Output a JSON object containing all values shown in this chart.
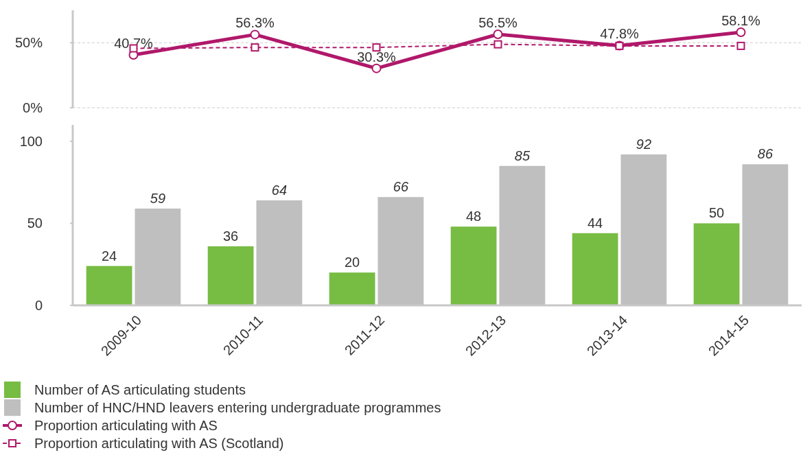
{
  "chart_data": [
    {
      "type": "line",
      "categories": [
        "2009-10",
        "2010-11",
        "2011-12",
        "2012-13",
        "2013-14",
        "2014-15"
      ],
      "ylim": [
        0,
        75
      ],
      "yticks": [
        {
          "value": 0,
          "label": "0%"
        },
        {
          "value": 50,
          "label": "50%"
        }
      ],
      "grid": "y",
      "tick_labels": "y",
      "legend": "bottom",
      "series": [
        {
          "name": "Proportion articulating with AS",
          "color": "#b0186a",
          "values": [
            40.7,
            56.3,
            30.3,
            56.5,
            47.8,
            58.1
          ],
          "value_labels": [
            "40.7%",
            "56.3%",
            "30.3%",
            "56.5%",
            "47.8%",
            "58.1%"
          ],
          "marker": "circle",
          "line_style": "solid"
        },
        {
          "name": "Proportion articulating with AS (Scotland)",
          "color": "#b0186a",
          "values": [
            45.7,
            46.4,
            46.4,
            48.8,
            47.6,
            47.6
          ],
          "marker": "square",
          "line_style": "dashed"
        }
      ]
    },
    {
      "type": "bar",
      "categories": [
        "2009-10",
        "2010-11",
        "2011-12",
        "2012-13",
        "2013-14",
        "2014-15"
      ],
      "ylim": [
        0,
        110
      ],
      "yticks": [
        0,
        50,
        100
      ],
      "data_labels": true,
      "legend": "bottom",
      "series": [
        {
          "name": "Number of AS articulating students",
          "color": "#77bc43",
          "values": [
            24,
            36,
            20,
            48,
            44,
            50
          ]
        },
        {
          "name": "Number of HNC/HND leavers entering undergraduate programmes",
          "color": "#bfbfbf",
          "values": [
            59,
            64,
            66,
            85,
            92,
            86
          ]
        }
      ]
    }
  ]
}
